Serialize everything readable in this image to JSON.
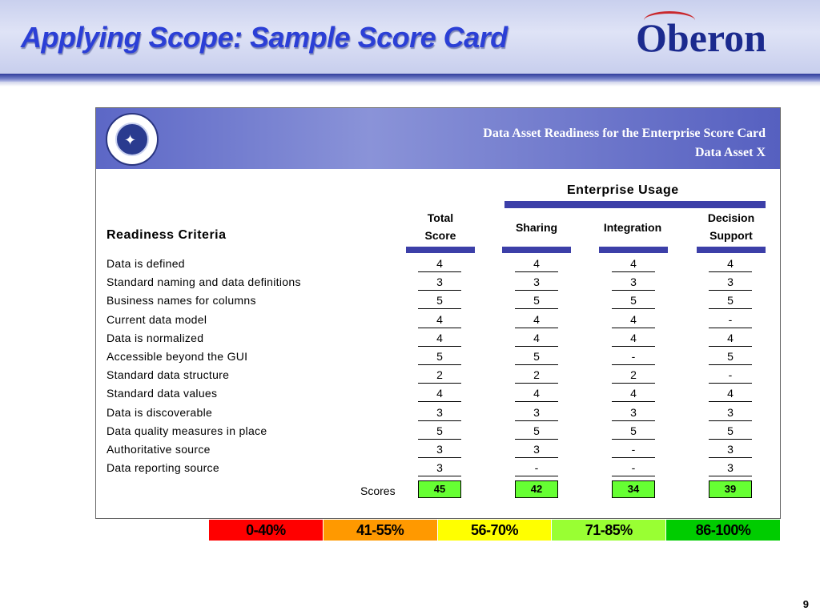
{
  "slide": {
    "title": "Applying Scope: Sample Score Card",
    "logo_text": "Oberon",
    "page_number": "9"
  },
  "card": {
    "banner_line1": "Data Asset Readiness for the Enterprise Score Card",
    "banner_line2": "Data Asset X",
    "enterprise_usage": "Enterprise Usage",
    "readiness_criteria": "Readiness Criteria",
    "columns": {
      "total_line1": "Total",
      "total_line2": "Score",
      "sharing": "Sharing",
      "integration": "Integration",
      "decision_line1": "Decision",
      "decision_line2": "Support"
    },
    "rows": [
      {
        "label": "Data is defined",
        "values": [
          "4",
          "4",
          "4",
          "4"
        ]
      },
      {
        "label": "Standard naming and data definitions",
        "values": [
          "3",
          "3",
          "3",
          "3"
        ]
      },
      {
        "label": "Business names for columns",
        "values": [
          "5",
          "5",
          "5",
          "5"
        ]
      },
      {
        "label": "Current data model",
        "values": [
          "4",
          "4",
          "4",
          "-"
        ]
      },
      {
        "label": "Data is normalized",
        "values": [
          "4",
          "4",
          "4",
          "4"
        ]
      },
      {
        "label": "Accessible beyond the GUI",
        "values": [
          "5",
          "5",
          "-",
          "5"
        ]
      },
      {
        "label": "Standard data structure",
        "values": [
          "2",
          "2",
          "2",
          "-"
        ]
      },
      {
        "label": "Standard data values",
        "values": [
          "4",
          "4",
          "4",
          "4"
        ]
      },
      {
        "label": "Data is discoverable",
        "values": [
          "3",
          "3",
          "3",
          "3"
        ]
      },
      {
        "label": "Data quality measures in place",
        "values": [
          "5",
          "5",
          "5",
          "5"
        ]
      },
      {
        "label": "Authoritative source",
        "values": [
          "3",
          "3",
          "-",
          "3"
        ]
      },
      {
        "label": "Data reporting source",
        "values": [
          "3",
          "-",
          "-",
          "3"
        ]
      }
    ],
    "scores_label": "Scores",
    "scores": [
      "45",
      "42",
      "34",
      "39"
    ],
    "score_color": "#66ff33"
  },
  "legend": [
    {
      "label": "0-40%",
      "color": "#ff0000"
    },
    {
      "label": "41-55%",
      "color": "#ff9900"
    },
    {
      "label": "56-70%",
      "color": "#ffff00"
    },
    {
      "label": "71-85%",
      "color": "#99ff33"
    },
    {
      "label": "86-100%",
      "color": "#00cc00"
    }
  ]
}
